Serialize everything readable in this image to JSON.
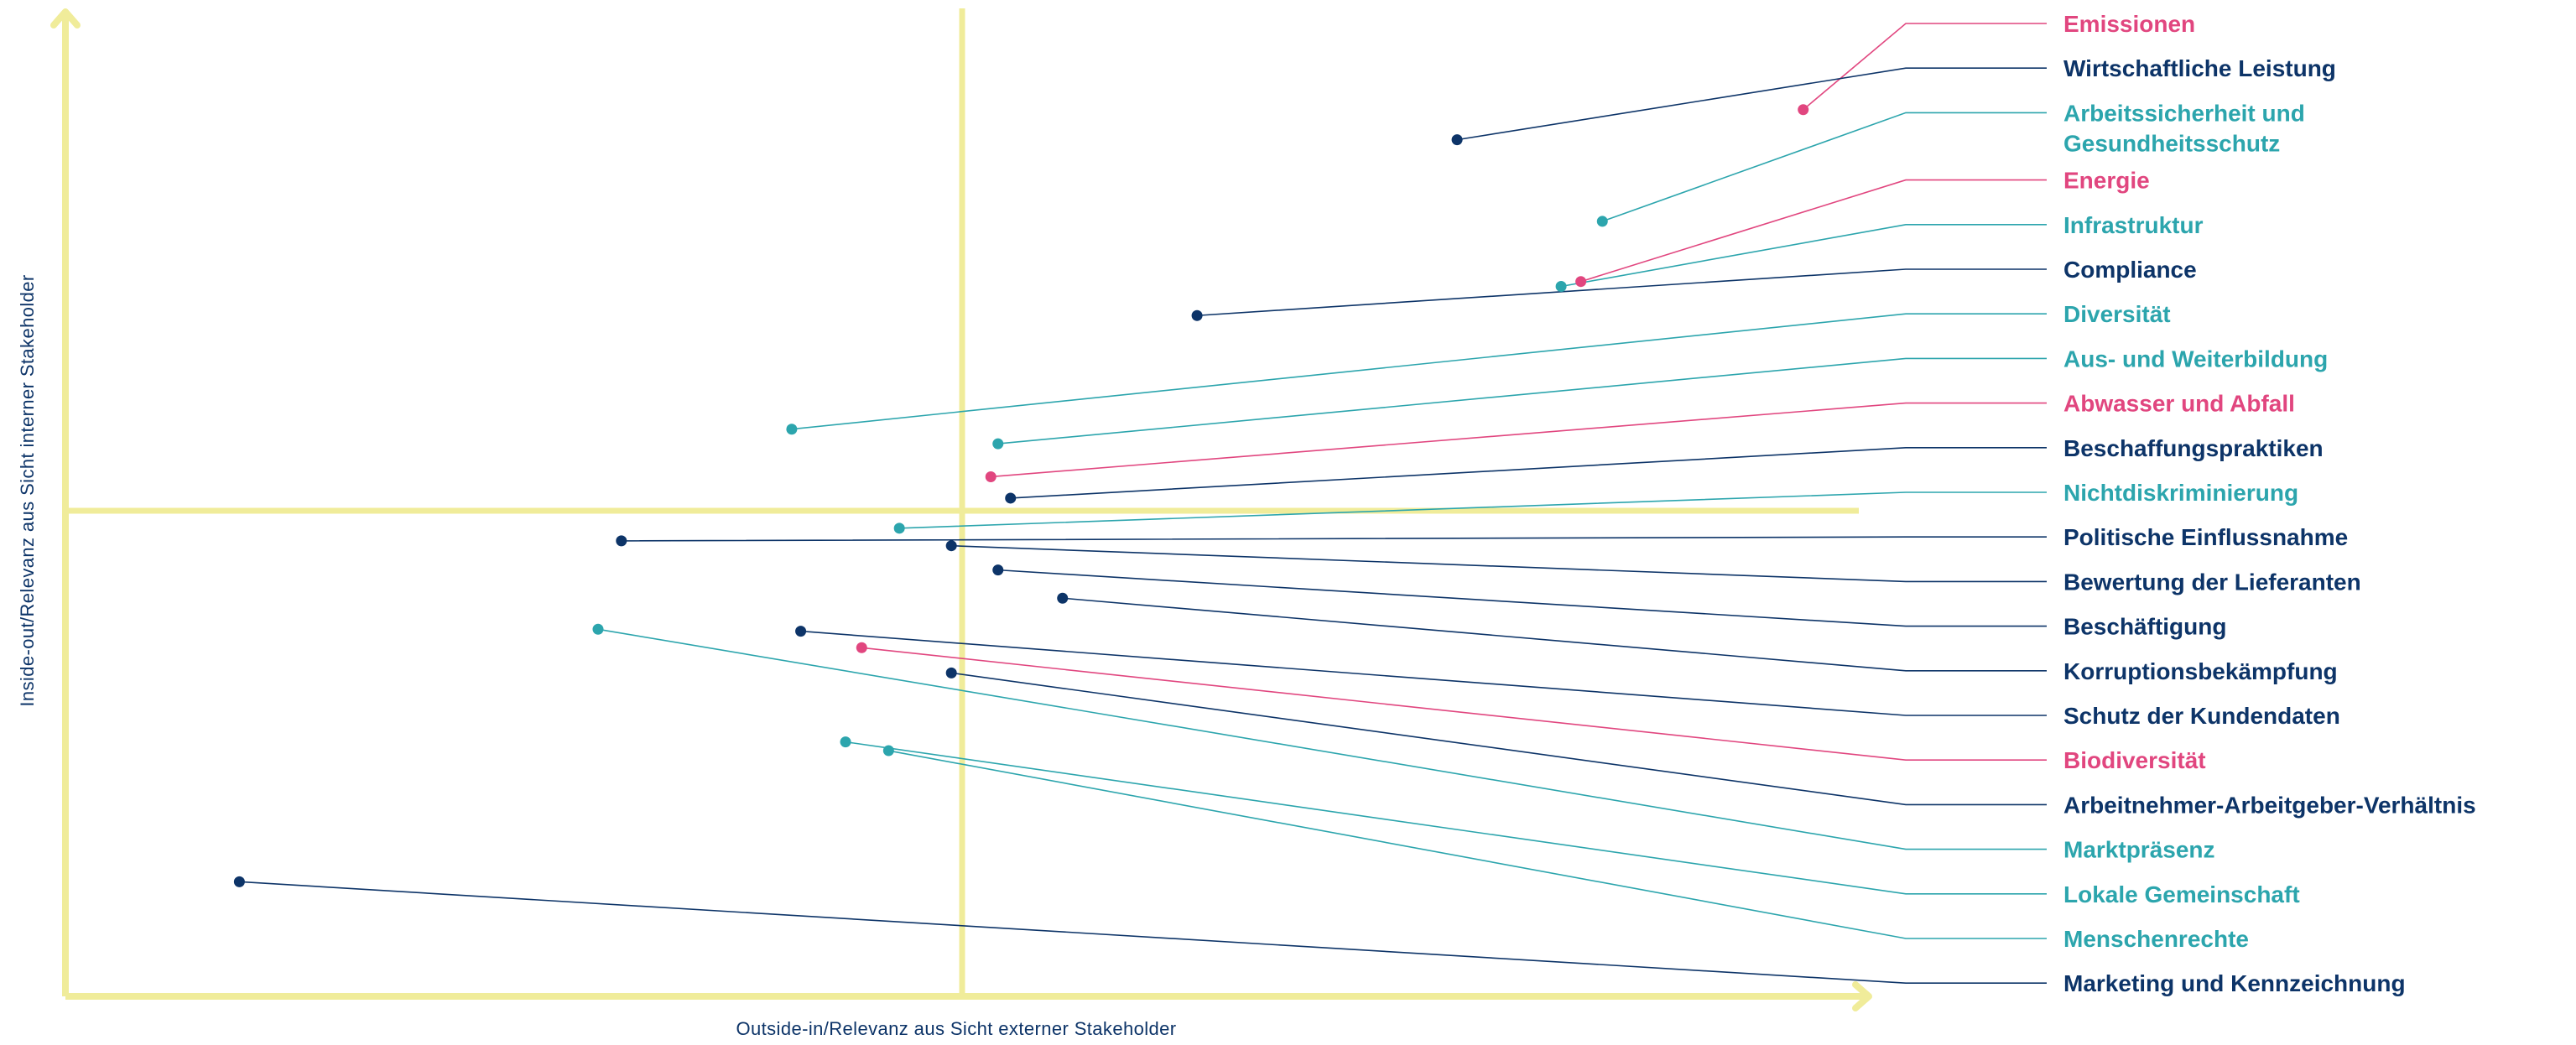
{
  "chart_data": {
    "type": "scatter",
    "xlabel": "Outside-in/Relevanz aus Sicht externer Stakeholder",
    "ylabel": "Inside-out/Relevanz aus Sicht interner Stakeholder",
    "xlim": [
      0,
      100
    ],
    "ylim": [
      0,
      100
    ],
    "quadrant_dividers": {
      "x": 50,
      "y": 50
    },
    "legend": "none",
    "grid": false,
    "colors": {
      "axis": "#f0ec9a",
      "navy": "#0d3468",
      "teal": "#2ca5ad",
      "pink": "#e1467f"
    },
    "points": [
      {
        "label": "Emissionen",
        "category": "pink",
        "x": 96.9,
        "y": 91.3
      },
      {
        "label": "Wirtschaftliche Leistung",
        "category": "navy",
        "x": 77.6,
        "y": 88.2
      },
      {
        "label": [
          "Arbeitssicherheit und",
          "Gesundheitsschutz"
        ],
        "category": "teal",
        "x": 85.7,
        "y": 79.8
      },
      {
        "label": "Energie",
        "category": "pink",
        "x": 84.5,
        "y": 73.6
      },
      {
        "label": "Infrastruktur",
        "category": "teal",
        "x": 83.4,
        "y": 73.1
      },
      {
        "label": "Compliance",
        "category": "navy",
        "x": 63.1,
        "y": 70.1
      },
      {
        "label": "Diversität",
        "category": "teal",
        "x": 40.5,
        "y": 58.4
      },
      {
        "label": "Aus- und Weiterbildung",
        "category": "teal",
        "x": 52.0,
        "y": 56.9
      },
      {
        "label": "Abwasser und Abfall",
        "category": "pink",
        "x": 51.6,
        "y": 53.5
      },
      {
        "label": "Beschaffungspraktiken",
        "category": "navy",
        "x": 52.7,
        "y": 51.3
      },
      {
        "label": "Nichtdiskriminierung",
        "category": "teal",
        "x": 46.5,
        "y": 48.2
      },
      {
        "label": "Politische Einflussnahme",
        "category": "navy",
        "x": 31.0,
        "y": 46.9
      },
      {
        "label": "Bewertung der Lieferanten",
        "category": "navy",
        "x": 49.4,
        "y": 46.4
      },
      {
        "label": "Beschäftigung",
        "category": "navy",
        "x": 52.0,
        "y": 43.9
      },
      {
        "label": "Korruptionsbekämpfung",
        "category": "navy",
        "x": 55.6,
        "y": 41.0
      },
      {
        "label": "Schutz der Kundendaten",
        "category": "navy",
        "x": 41.0,
        "y": 37.6
      },
      {
        "label": "Biodiversität",
        "category": "pink",
        "x": 44.4,
        "y": 35.9
      },
      {
        "label": "Arbeitnehmer-Arbeitgeber-Verhältnis",
        "category": "navy",
        "x": 49.4,
        "y": 33.3
      },
      {
        "label": "Marktpräsenz",
        "category": "teal",
        "x": 29.7,
        "y": 37.8
      },
      {
        "label": "Lokale Gemeinschaft",
        "category": "teal",
        "x": 43.5,
        "y": 26.2
      },
      {
        "label": "Menschenrechte",
        "category": "teal",
        "x": 45.9,
        "y": 25.3
      },
      {
        "label": "Marketing und Kennzeichnung",
        "category": "navy",
        "x": 9.7,
        "y": 11.8
      }
    ]
  }
}
